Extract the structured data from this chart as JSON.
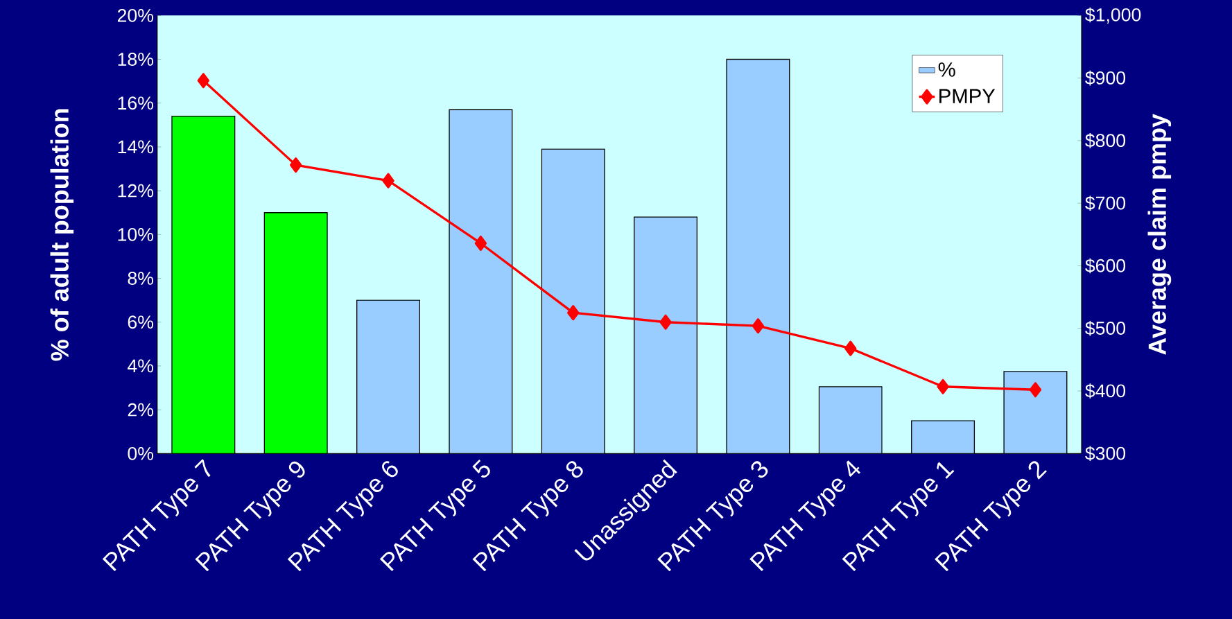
{
  "chart_data": {
    "type": "bar",
    "ylabel": "% of adult population",
    "y2label": "Average claim pmpy",
    "categories": [
      "PATH Type 7",
      "PATH Type 9",
      "PATH Type 6",
      "PATH Type 5",
      "PATH Type 8",
      "Unassigned",
      "PATH Type 3",
      "PATH Type 4",
      "PATH Type 1",
      "PATH Type 2"
    ],
    "series": [
      {
        "name": "%",
        "color": "#99ccff",
        "colors": [
          "#00ff00",
          "#00ff00",
          "#99ccff",
          "#99ccff",
          "#99ccff",
          "#99ccff",
          "#99ccff",
          "#99ccff",
          "#99ccff",
          "#99ccff"
        ],
        "values": [
          15.4,
          11.0,
          7.0,
          15.7,
          13.9,
          10.8,
          18.0,
          3.05,
          1.5,
          3.75
        ]
      },
      {
        "name": "PMPY",
        "type": "line",
        "axis": "y2",
        "color": "#ff0000",
        "marker": "diamond",
        "values": [
          896,
          761,
          736,
          636,
          525,
          510,
          504,
          468,
          407,
          402
        ]
      }
    ],
    "ylim": [
      0,
      20
    ],
    "yticks": [
      {
        "value": 0,
        "label": "0%"
      },
      {
        "value": 2,
        "label": "2%"
      },
      {
        "value": 4,
        "label": "4%"
      },
      {
        "value": 6,
        "label": "6%"
      },
      {
        "value": 8,
        "label": "8%"
      },
      {
        "value": 10,
        "label": "10%"
      },
      {
        "value": 12,
        "label": "12%"
      },
      {
        "value": 14,
        "label": "14%"
      },
      {
        "value": 16,
        "label": "16%"
      },
      {
        "value": 18,
        "label": "18%"
      },
      {
        "value": 20,
        "label": "20%"
      }
    ],
    "y2lim": [
      300,
      1000
    ],
    "y2ticks": [
      {
        "value": 300,
        "label": "$300"
      },
      {
        "value": 400,
        "label": "$400"
      },
      {
        "value": 500,
        "label": "$500"
      },
      {
        "value": 600,
        "label": "$600"
      },
      {
        "value": 700,
        "label": "$700"
      },
      {
        "value": 800,
        "label": "$800"
      },
      {
        "value": 900,
        "label": "$900"
      },
      {
        "value": 1000,
        "label": "$1,000"
      }
    ],
    "legend": "top right"
  }
}
